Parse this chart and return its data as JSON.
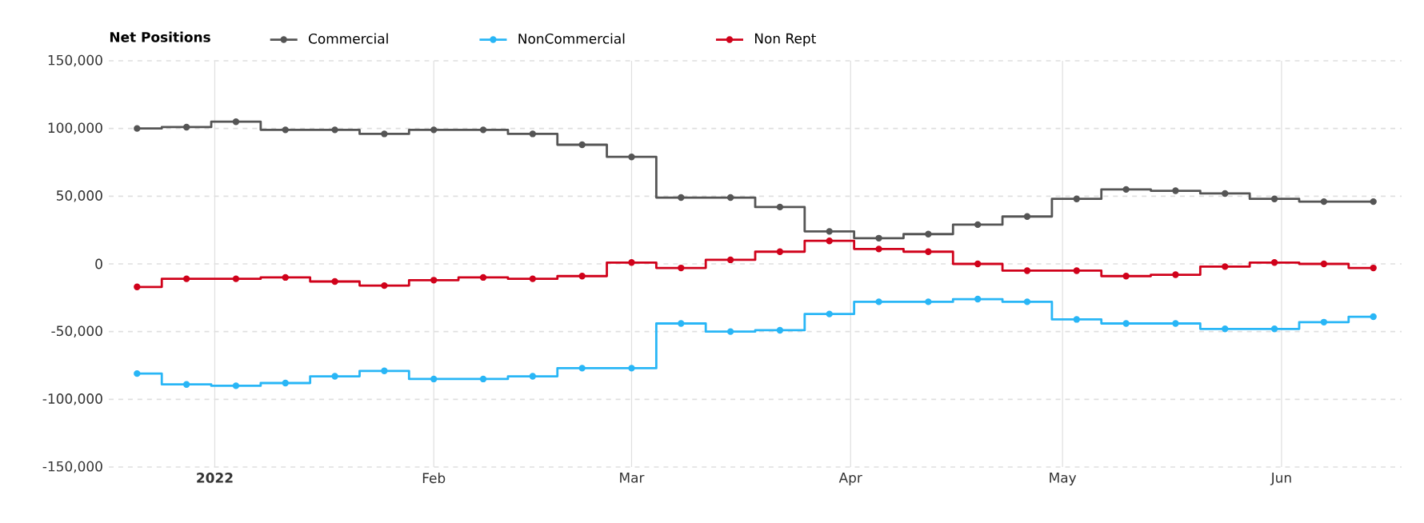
{
  "chart_data": {
    "type": "step",
    "legend_title": "Net Positions",
    "x": [
      "2021-12-21",
      "2021-12-28",
      "2022-01-04",
      "2022-01-11",
      "2022-01-18",
      "2022-01-25",
      "2022-02-01",
      "2022-02-08",
      "2022-02-15",
      "2022-02-22",
      "2022-03-01",
      "2022-03-08",
      "2022-03-15",
      "2022-03-22",
      "2022-03-29",
      "2022-04-05",
      "2022-04-12",
      "2022-04-19",
      "2022-04-26",
      "2022-05-03",
      "2022-05-10",
      "2022-05-17",
      "2022-05-24",
      "2022-05-31",
      "2022-06-07",
      "2022-06-14"
    ],
    "series": [
      {
        "name": "Commercial",
        "color": "#555555",
        "values": [
          100000,
          101000,
          105000,
          99000,
          99000,
          96000,
          99000,
          99000,
          96000,
          88000,
          79000,
          49000,
          49000,
          42000,
          24000,
          19000,
          22000,
          29000,
          35000,
          48000,
          55000,
          54000,
          52000,
          48000,
          46000,
          46000
        ]
      },
      {
        "name": "NonCommercial",
        "color": "#29b6f6",
        "values": [
          -81000,
          -89000,
          -90000,
          -88000,
          -83000,
          -79000,
          -85000,
          -85000,
          -83000,
          -77000,
          -77000,
          -44000,
          -50000,
          -49000,
          -37000,
          -28000,
          -28000,
          -26000,
          -28000,
          -41000,
          -44000,
          -44000,
          -48000,
          -48000,
          -43000,
          -39000
        ]
      },
      {
        "name": "Non Rept",
        "color": "#d0021b",
        "values": [
          -17000,
          -11000,
          -11000,
          -10000,
          -13000,
          -16000,
          -12000,
          -10000,
          -11000,
          -9000,
          1000,
          -3000,
          3000,
          9000,
          17000,
          11000,
          9000,
          0,
          -5000,
          -5000,
          -9000,
          -8000,
          -2000,
          1000,
          0,
          -3000
        ]
      }
    ],
    "xlim": [
      "2021-12-17",
      "2022-06-18"
    ],
    "xticks": [
      {
        "value": "2022-01-01",
        "label": "**2022**"
      },
      {
        "value": "2022-02-01",
        "label": "Feb"
      },
      {
        "value": "2022-03-01",
        "label": "Mar"
      },
      {
        "value": "2022-04-01",
        "label": "Apr"
      },
      {
        "value": "2022-05-01",
        "label": "May"
      },
      {
        "value": "2022-06-01",
        "label": "Jun"
      }
    ],
    "ylim": [
      -150000,
      150000
    ],
    "yticks": [
      {
        "value": -150000,
        "label": "-150,000"
      },
      {
        "value": -100000,
        "label": "-100,000"
      },
      {
        "value": -50000,
        "label": "-50,000"
      },
      0,
      {
        "value": 50000,
        "label": "50,000"
      },
      {
        "value": 100000,
        "label": "100,000"
      },
      {
        "value": 150000,
        "label": "150,000"
      }
    ],
    "grid": true,
    "legend": "top left",
    "marker": "circle",
    "line_style": "solid"
  }
}
